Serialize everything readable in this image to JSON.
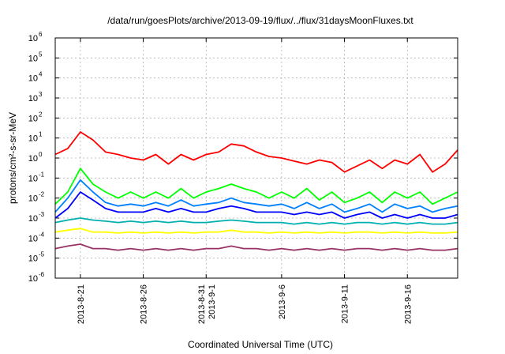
{
  "chart_data": {
    "type": "line",
    "title": "/data/run/goesPlots/archive/2013-09-19/flux/../flux/31daysMoonFluxes.txt",
    "xlabel": "Coordinated Universal Time (UTC)",
    "ylabel": "protons/cm²-s-sr-MeV",
    "yscale": "log",
    "ylim": [
      1e-06,
      1000000.0
    ],
    "xlim": [
      "2013-08-19",
      "2013-09-20"
    ],
    "grid": true,
    "legend": "none",
    "x_ticks": [
      {
        "date": "2013-08-21",
        "lines": [
          "2013-8-21"
        ]
      },
      {
        "date": "2013-08-26",
        "lines": [
          "2013-8-26"
        ]
      },
      {
        "date": "2013-08-31",
        "lines": [
          "2013-8-31",
          "2013-9-1"
        ]
      },
      {
        "date": "2013-09-06",
        "lines": [
          "2013-9-6"
        ]
      },
      {
        "date": "2013-09-11",
        "lines": [
          "2013-9-11"
        ]
      },
      {
        "date": "2013-09-16",
        "lines": [
          "2013-9-16"
        ]
      }
    ],
    "y_ticks": [
      {
        "value": 1e-06,
        "mant": "10",
        "exp": "-6"
      },
      {
        "value": 1e-05,
        "mant": "10",
        "exp": "-5"
      },
      {
        "value": 0.0001,
        "mant": "10",
        "exp": "-4"
      },
      {
        "value": 0.001,
        "mant": "10",
        "exp": "-3"
      },
      {
        "value": 0.01,
        "mant": "10",
        "exp": "-2"
      },
      {
        "value": 0.1,
        "mant": "10",
        "exp": "-1"
      },
      {
        "value": 1,
        "mant": "10",
        "exp": "0"
      },
      {
        "value": 10,
        "mant": "10",
        "exp": "1"
      },
      {
        "value": 100,
        "mant": "10",
        "exp": "2"
      },
      {
        "value": 1000,
        "mant": "10",
        "exp": "3"
      },
      {
        "value": 10000,
        "mant": "10",
        "exp": "4"
      },
      {
        "value": 100000,
        "mant": "10",
        "exp": "5"
      },
      {
        "value": 1000000,
        "mant": "10",
        "exp": "6"
      }
    ],
    "series": [
      {
        "color": "#ff0000",
        "x": [
          "2013-08-19",
          "2013-08-20",
          "2013-08-21",
          "2013-08-22",
          "2013-08-23",
          "2013-08-24",
          "2013-08-25",
          "2013-08-26",
          "2013-08-27",
          "2013-08-28",
          "2013-08-29",
          "2013-08-30",
          "2013-08-31",
          "2013-09-01",
          "2013-09-02",
          "2013-09-03",
          "2013-09-04",
          "2013-09-05",
          "2013-09-06",
          "2013-09-07",
          "2013-09-08",
          "2013-09-09",
          "2013-09-10",
          "2013-09-11",
          "2013-09-12",
          "2013-09-13",
          "2013-09-14",
          "2013-09-15",
          "2013-09-16",
          "2013-09-17",
          "2013-09-18",
          "2013-09-19",
          "2013-09-20"
        ],
        "values": [
          1.5,
          3,
          20,
          8,
          2,
          1.5,
          1,
          0.8,
          1.5,
          0.5,
          1.5,
          0.8,
          1.5,
          2,
          5,
          4,
          2,
          1.2,
          1,
          0.7,
          0.5,
          0.8,
          0.6,
          0.2,
          0.4,
          0.8,
          0.3,
          0.8,
          0.5,
          1.5,
          0.2,
          0.5,
          2.5
        ]
      },
      {
        "color": "#00ff00",
        "x": [
          "2013-08-19",
          "2013-08-20",
          "2013-08-21",
          "2013-08-22",
          "2013-08-23",
          "2013-08-24",
          "2013-08-25",
          "2013-08-26",
          "2013-08-27",
          "2013-08-28",
          "2013-08-29",
          "2013-08-30",
          "2013-08-31",
          "2013-09-01",
          "2013-09-02",
          "2013-09-03",
          "2013-09-04",
          "2013-09-05",
          "2013-09-06",
          "2013-09-07",
          "2013-09-08",
          "2013-09-09",
          "2013-09-10",
          "2013-09-11",
          "2013-09-12",
          "2013-09-13",
          "2013-09-14",
          "2013-09-15",
          "2013-09-16",
          "2013-09-17",
          "2013-09-18",
          "2013-09-19",
          "2013-09-20"
        ],
        "values": [
          0.005,
          0.02,
          0.3,
          0.05,
          0.02,
          0.01,
          0.02,
          0.01,
          0.02,
          0.01,
          0.03,
          0.01,
          0.02,
          0.03,
          0.05,
          0.03,
          0.02,
          0.01,
          0.02,
          0.01,
          0.03,
          0.008,
          0.02,
          0.006,
          0.01,
          0.02,
          0.006,
          0.02,
          0.01,
          0.02,
          0.005,
          0.01,
          0.02
        ]
      },
      {
        "color": "#0080ff",
        "x": [
          "2013-08-19",
          "2013-08-20",
          "2013-08-21",
          "2013-08-22",
          "2013-08-23",
          "2013-08-24",
          "2013-08-25",
          "2013-08-26",
          "2013-08-27",
          "2013-08-28",
          "2013-08-29",
          "2013-08-30",
          "2013-08-31",
          "2013-09-01",
          "2013-09-02",
          "2013-09-03",
          "2013-09-04",
          "2013-09-05",
          "2013-09-06",
          "2013-09-07",
          "2013-09-08",
          "2013-09-09",
          "2013-09-10",
          "2013-09-11",
          "2013-09-12",
          "2013-09-13",
          "2013-09-14",
          "2013-09-15",
          "2013-09-16",
          "2013-09-17",
          "2013-09-18",
          "2013-09-19",
          "2013-09-20"
        ],
        "values": [
          0.002,
          0.01,
          0.08,
          0.02,
          0.006,
          0.004,
          0.005,
          0.004,
          0.006,
          0.004,
          0.008,
          0.004,
          0.005,
          0.006,
          0.01,
          0.006,
          0.005,
          0.004,
          0.005,
          0.003,
          0.006,
          0.003,
          0.005,
          0.002,
          0.003,
          0.005,
          0.002,
          0.005,
          0.003,
          0.004,
          0.002,
          0.003,
          0.004
        ]
      },
      {
        "color": "#0000ff",
        "x": [
          "2013-08-19",
          "2013-08-20",
          "2013-08-21",
          "2013-08-22",
          "2013-08-23",
          "2013-08-24",
          "2013-08-25",
          "2013-08-26",
          "2013-08-27",
          "2013-08-28",
          "2013-08-29",
          "2013-08-30",
          "2013-08-31",
          "2013-09-01",
          "2013-09-02",
          "2013-09-03",
          "2013-09-04",
          "2013-09-05",
          "2013-09-06",
          "2013-09-07",
          "2013-09-08",
          "2013-09-09",
          "2013-09-10",
          "2013-09-11",
          "2013-09-12",
          "2013-09-13",
          "2013-09-14",
          "2013-09-15",
          "2013-09-16",
          "2013-09-17",
          "2013-09-18",
          "2013-09-19",
          "2013-09-20"
        ],
        "values": [
          0.001,
          0.003,
          0.02,
          0.008,
          0.003,
          0.002,
          0.002,
          0.002,
          0.003,
          0.002,
          0.003,
          0.002,
          0.002,
          0.003,
          0.004,
          0.003,
          0.002,
          0.002,
          0.002,
          0.0015,
          0.002,
          0.0015,
          0.002,
          0.001,
          0.0015,
          0.002,
          0.001,
          0.0015,
          0.001,
          0.0015,
          0.001,
          0.001,
          0.0015
        ]
      },
      {
        "color": "#00b0b0",
        "x": [
          "2013-08-19",
          "2013-08-20",
          "2013-08-21",
          "2013-08-22",
          "2013-08-23",
          "2013-08-24",
          "2013-08-25",
          "2013-08-26",
          "2013-08-27",
          "2013-08-28",
          "2013-08-29",
          "2013-08-30",
          "2013-08-31",
          "2013-09-01",
          "2013-09-02",
          "2013-09-03",
          "2013-09-04",
          "2013-09-05",
          "2013-09-06",
          "2013-09-07",
          "2013-09-08",
          "2013-09-09",
          "2013-09-10",
          "2013-09-11",
          "2013-09-12",
          "2013-09-13",
          "2013-09-14",
          "2013-09-15",
          "2013-09-16",
          "2013-09-17",
          "2013-09-18",
          "2013-09-19",
          "2013-09-20"
        ],
        "values": [
          0.0006,
          0.0008,
          0.001,
          0.0008,
          0.0007,
          0.0006,
          0.0007,
          0.0006,
          0.0007,
          0.0006,
          0.0007,
          0.0006,
          0.0006,
          0.0007,
          0.0008,
          0.0007,
          0.0006,
          0.0006,
          0.0006,
          0.0005,
          0.0006,
          0.0005,
          0.0006,
          0.0005,
          0.0006,
          0.0006,
          0.0005,
          0.0006,
          0.0005,
          0.0006,
          0.0005,
          0.0005,
          0.0006
        ]
      },
      {
        "color": "#ffff00",
        "x": [
          "2013-08-19",
          "2013-08-20",
          "2013-08-21",
          "2013-08-22",
          "2013-08-23",
          "2013-08-24",
          "2013-08-25",
          "2013-08-26",
          "2013-08-27",
          "2013-08-28",
          "2013-08-29",
          "2013-08-30",
          "2013-08-31",
          "2013-09-01",
          "2013-09-02",
          "2013-09-03",
          "2013-09-04",
          "2013-09-05",
          "2013-09-06",
          "2013-09-07",
          "2013-09-08",
          "2013-09-09",
          "2013-09-10",
          "2013-09-11",
          "2013-09-12",
          "2013-09-13",
          "2013-09-14",
          "2013-09-15",
          "2013-09-16",
          "2013-09-17",
          "2013-09-18",
          "2013-09-19",
          "2013-09-20"
        ],
        "values": [
          0.0002,
          0.00025,
          0.0003,
          0.0002,
          0.0002,
          0.00018,
          0.0002,
          0.00018,
          0.0002,
          0.00018,
          0.0002,
          0.00018,
          0.0002,
          0.0002,
          0.00025,
          0.0002,
          0.0002,
          0.00018,
          0.0002,
          0.00018,
          0.0002,
          0.00018,
          0.0002,
          0.00018,
          0.0002,
          0.0002,
          0.00018,
          0.0002,
          0.00018,
          0.0002,
          0.00018,
          0.00018,
          0.0002
        ]
      },
      {
        "color": "#993366",
        "x": [
          "2013-08-19",
          "2013-08-20",
          "2013-08-21",
          "2013-08-22",
          "2013-08-23",
          "2013-08-24",
          "2013-08-25",
          "2013-08-26",
          "2013-08-27",
          "2013-08-28",
          "2013-08-29",
          "2013-08-30",
          "2013-08-31",
          "2013-09-01",
          "2013-09-02",
          "2013-09-03",
          "2013-09-04",
          "2013-09-05",
          "2013-09-06",
          "2013-09-07",
          "2013-09-08",
          "2013-09-09",
          "2013-09-10",
          "2013-09-11",
          "2013-09-12",
          "2013-09-13",
          "2013-09-14",
          "2013-09-15",
          "2013-09-16",
          "2013-09-17",
          "2013-09-18",
          "2013-09-19",
          "2013-09-20"
        ],
        "values": [
          3e-05,
          4e-05,
          5e-05,
          3e-05,
          3e-05,
          2.5e-05,
          3e-05,
          2.5e-05,
          3e-05,
          2.5e-05,
          3e-05,
          2.5e-05,
          3e-05,
          3e-05,
          4e-05,
          3e-05,
          3e-05,
          2.5e-05,
          3e-05,
          2.5e-05,
          3e-05,
          2.5e-05,
          3e-05,
          2.5e-05,
          3e-05,
          3e-05,
          2.5e-05,
          3e-05,
          2.5e-05,
          3e-05,
          2.5e-05,
          2.5e-05,
          3e-05
        ]
      }
    ]
  }
}
